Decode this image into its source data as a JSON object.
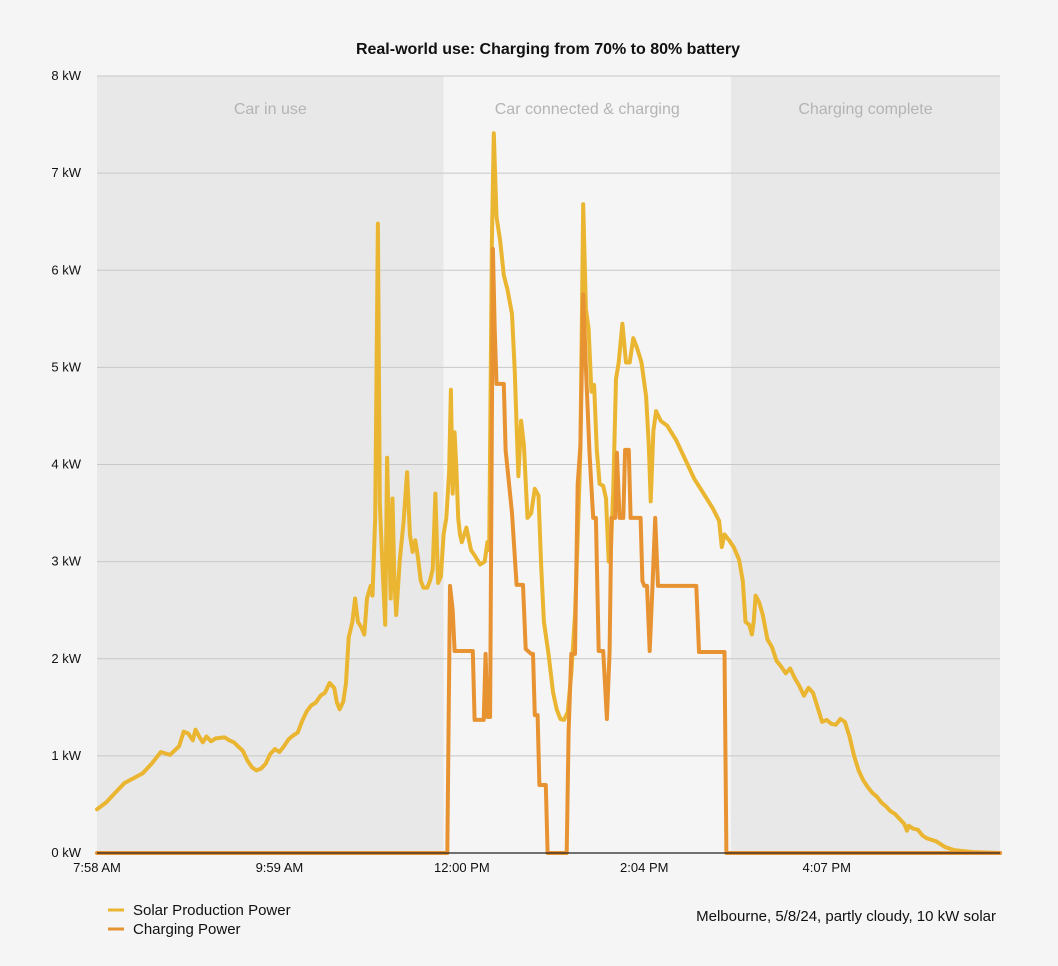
{
  "chart_data": {
    "type": "line",
    "title": "Real-world use: Charging from 70% to 80% battery",
    "xlabel": "",
    "ylabel": "",
    "x_ticks": [
      "7:58 AM",
      "9:59 AM",
      "12:00 PM",
      "2:04 PM",
      "4:07 PM"
    ],
    "x_tick_positions_hours": [
      0,
      2,
      4,
      6,
      8
    ],
    "y_ticks": [
      "0 kW",
      "1 kW",
      "2 kW",
      "3 kW",
      "4 kW",
      "5 kW",
      "6 kW",
      "7 kW",
      "8 kW"
    ],
    "ylim": [
      0,
      8
    ],
    "xlim_hours": [
      0,
      9.9
    ],
    "grid": true,
    "bands": [
      {
        "label": "Car in use",
        "x_start_hours": 0,
        "x_end_hours": 3.8,
        "color": "#e8e8e8"
      },
      {
        "label": "Car connected & charging",
        "x_start_hours": 3.8,
        "x_end_hours": 6.95,
        "color": "#f5f5f5"
      },
      {
        "label": "Charging complete",
        "x_start_hours": 6.95,
        "x_end_hours": 9.9,
        "color": "#e8e8e8"
      }
    ],
    "series": [
      {
        "name": "Solar Production Power",
        "color": "#eab531",
        "points": [
          [
            0,
            0.45
          ],
          [
            0.1,
            0.52
          ],
          [
            0.2,
            0.62
          ],
          [
            0.3,
            0.72
          ],
          [
            0.4,
            0.77
          ],
          [
            0.5,
            0.82
          ],
          [
            0.6,
            0.92
          ],
          [
            0.65,
            0.98
          ],
          [
            0.7,
            1.04
          ],
          [
            0.8,
            1.01
          ],
          [
            0.9,
            1.1
          ],
          [
            0.95,
            1.25
          ],
          [
            1.0,
            1.23
          ],
          [
            1.05,
            1.16
          ],
          [
            1.08,
            1.27
          ],
          [
            1.12,
            1.2
          ],
          [
            1.16,
            1.14
          ],
          [
            1.2,
            1.2
          ],
          [
            1.25,
            1.15
          ],
          [
            1.3,
            1.18
          ],
          [
            1.4,
            1.19
          ],
          [
            1.45,
            1.16
          ],
          [
            1.5,
            1.14
          ],
          [
            1.6,
            1.05
          ],
          [
            1.65,
            0.95
          ],
          [
            1.7,
            0.88
          ],
          [
            1.75,
            0.85
          ],
          [
            1.8,
            0.87
          ],
          [
            1.85,
            0.92
          ],
          [
            1.9,
            1.02
          ],
          [
            1.95,
            1.07
          ],
          [
            2.0,
            1.04
          ],
          [
            2.05,
            1.1
          ],
          [
            2.1,
            1.17
          ],
          [
            2.15,
            1.21
          ],
          [
            2.2,
            1.24
          ],
          [
            2.25,
            1.36
          ],
          [
            2.3,
            1.46
          ],
          [
            2.35,
            1.52
          ],
          [
            2.4,
            1.55
          ],
          [
            2.45,
            1.62
          ],
          [
            2.5,
            1.65
          ],
          [
            2.55,
            1.75
          ],
          [
            2.6,
            1.7
          ],
          [
            2.63,
            1.55
          ],
          [
            2.66,
            1.48
          ],
          [
            2.7,
            1.56
          ],
          [
            2.73,
            1.75
          ],
          [
            2.76,
            2.22
          ],
          [
            2.8,
            2.38
          ],
          [
            2.83,
            2.62
          ],
          [
            2.86,
            2.38
          ],
          [
            2.9,
            2.32
          ],
          [
            2.93,
            2.25
          ],
          [
            2.96,
            2.62
          ],
          [
            3.0,
            2.75
          ],
          [
            3.02,
            2.65
          ],
          [
            3.05,
            3.45
          ],
          [
            3.08,
            6.48
          ],
          [
            3.1,
            3.6
          ],
          [
            3.13,
            2.95
          ],
          [
            3.16,
            2.35
          ],
          [
            3.18,
            4.07
          ],
          [
            3.2,
            3.3
          ],
          [
            3.22,
            2.62
          ],
          [
            3.24,
            3.65
          ],
          [
            3.26,
            2.8
          ],
          [
            3.28,
            2.45
          ],
          [
            3.32,
            3.02
          ],
          [
            3.36,
            3.4
          ],
          [
            3.4,
            3.92
          ],
          [
            3.43,
            3.28
          ],
          [
            3.46,
            3.1
          ],
          [
            3.49,
            3.22
          ],
          [
            3.52,
            3.03
          ],
          [
            3.55,
            2.8
          ],
          [
            3.58,
            2.73
          ],
          [
            3.62,
            2.73
          ],
          [
            3.65,
            2.8
          ],
          [
            3.68,
            2.92
          ],
          [
            3.71,
            3.7
          ],
          [
            3.74,
            2.78
          ],
          [
            3.77,
            2.85
          ],
          [
            3.8,
            3.28
          ],
          [
            3.83,
            3.45
          ],
          [
            3.86,
            3.92
          ],
          [
            3.88,
            4.77
          ],
          [
            3.9,
            3.7
          ],
          [
            3.92,
            4.33
          ],
          [
            3.94,
            3.95
          ],
          [
            3.96,
            3.45
          ],
          [
            3.98,
            3.28
          ],
          [
            4.0,
            3.2
          ],
          [
            4.05,
            3.35
          ],
          [
            4.1,
            3.12
          ],
          [
            4.15,
            3.05
          ],
          [
            4.2,
            2.97
          ],
          [
            4.25,
            3.0
          ],
          [
            4.28,
            3.2
          ],
          [
            4.3,
            3.12
          ],
          [
            4.33,
            6.3
          ],
          [
            4.35,
            7.41
          ],
          [
            4.38,
            6.55
          ],
          [
            4.42,
            6.3
          ],
          [
            4.46,
            5.95
          ],
          [
            4.5,
            5.8
          ],
          [
            4.55,
            5.55
          ],
          [
            4.58,
            4.95
          ],
          [
            4.6,
            4.4
          ],
          [
            4.62,
            3.88
          ],
          [
            4.65,
            4.45
          ],
          [
            4.68,
            4.2
          ],
          [
            4.72,
            3.45
          ],
          [
            4.76,
            3.5
          ],
          [
            4.8,
            3.75
          ],
          [
            4.84,
            3.68
          ],
          [
            4.87,
            2.95
          ],
          [
            4.9,
            2.38
          ],
          [
            4.95,
            2.05
          ],
          [
            5.0,
            1.65
          ],
          [
            5.04,
            1.48
          ],
          [
            5.08,
            1.38
          ],
          [
            5.12,
            1.37
          ],
          [
            5.16,
            1.45
          ],
          [
            5.2,
            1.85
          ],
          [
            5.24,
            2.45
          ],
          [
            5.27,
            3.25
          ],
          [
            5.3,
            4.15
          ],
          [
            5.33,
            6.68
          ],
          [
            5.36,
            5.6
          ],
          [
            5.39,
            5.4
          ],
          [
            5.42,
            4.75
          ],
          [
            5.45,
            4.82
          ],
          [
            5.48,
            4.15
          ],
          [
            5.51,
            3.8
          ],
          [
            5.55,
            3.78
          ],
          [
            5.58,
            3.65
          ],
          [
            5.61,
            3.0
          ],
          [
            5.63,
            3.02
          ],
          [
            5.66,
            3.75
          ],
          [
            5.69,
            4.88
          ],
          [
            5.72,
            5.05
          ],
          [
            5.76,
            5.45
          ],
          [
            5.8,
            5.05
          ],
          [
            5.84,
            5.05
          ],
          [
            5.88,
            5.3
          ],
          [
            5.92,
            5.2
          ],
          [
            5.97,
            5.05
          ],
          [
            6.02,
            4.7
          ],
          [
            6.05,
            4.2
          ],
          [
            6.07,
            3.62
          ],
          [
            6.1,
            4.35
          ],
          [
            6.13,
            4.55
          ],
          [
            6.18,
            4.45
          ],
          [
            6.25,
            4.4
          ],
          [
            6.35,
            4.25
          ],
          [
            6.45,
            4.05
          ],
          [
            6.55,
            3.85
          ],
          [
            6.65,
            3.7
          ],
          [
            6.75,
            3.55
          ],
          [
            6.82,
            3.42
          ],
          [
            6.85,
            3.15
          ],
          [
            6.88,
            3.28
          ],
          [
            6.93,
            3.22
          ],
          [
            6.98,
            3.15
          ],
          [
            7.04,
            3.02
          ],
          [
            7.08,
            2.8
          ],
          [
            7.11,
            2.38
          ],
          [
            7.15,
            2.35
          ],
          [
            7.18,
            2.25
          ],
          [
            7.2,
            2.38
          ],
          [
            7.22,
            2.65
          ],
          [
            7.26,
            2.58
          ],
          [
            7.3,
            2.45
          ],
          [
            7.35,
            2.2
          ],
          [
            7.4,
            2.12
          ],
          [
            7.45,
            1.98
          ],
          [
            7.5,
            1.92
          ],
          [
            7.55,
            1.85
          ],
          [
            7.6,
            1.9
          ],
          [
            7.65,
            1.8
          ],
          [
            7.7,
            1.72
          ],
          [
            7.75,
            1.62
          ],
          [
            7.8,
            1.7
          ],
          [
            7.85,
            1.65
          ],
          [
            7.9,
            1.5
          ],
          [
            7.95,
            1.35
          ],
          [
            8.0,
            1.37
          ],
          [
            8.05,
            1.33
          ],
          [
            8.1,
            1.32
          ],
          [
            8.15,
            1.38
          ],
          [
            8.2,
            1.35
          ],
          [
            8.25,
            1.2
          ],
          [
            8.3,
            1.0
          ],
          [
            8.35,
            0.85
          ],
          [
            8.4,
            0.75
          ],
          [
            8.45,
            0.68
          ],
          [
            8.5,
            0.62
          ],
          [
            8.55,
            0.58
          ],
          [
            8.6,
            0.52
          ],
          [
            8.65,
            0.48
          ],
          [
            8.7,
            0.43
          ],
          [
            8.75,
            0.4
          ],
          [
            8.8,
            0.35
          ],
          [
            8.85,
            0.3
          ],
          [
            8.88,
            0.23
          ],
          [
            8.9,
            0.28
          ],
          [
            8.95,
            0.25
          ],
          [
            9.0,
            0.24
          ],
          [
            9.05,
            0.18
          ],
          [
            9.1,
            0.15
          ],
          [
            9.2,
            0.12
          ],
          [
            9.3,
            0.06
          ],
          [
            9.4,
            0.03
          ],
          [
            9.5,
            0.02
          ],
          [
            9.6,
            0.01
          ],
          [
            9.9,
            0.0
          ]
        ]
      },
      {
        "name": "Charging Power",
        "color": "#e89332",
        "points": [
          [
            0,
            0
          ],
          [
            3.82,
            0
          ],
          [
            3.84,
            0
          ],
          [
            3.87,
            2.75
          ],
          [
            3.9,
            2.5
          ],
          [
            3.92,
            2.08
          ],
          [
            4.05,
            2.08
          ],
          [
            4.12,
            2.08
          ],
          [
            4.14,
            1.37
          ],
          [
            4.24,
            1.37
          ],
          [
            4.26,
            2.05
          ],
          [
            4.28,
            1.4
          ],
          [
            4.31,
            1.4
          ],
          [
            4.34,
            6.22
          ],
          [
            4.36,
            5.4
          ],
          [
            4.38,
            4.83
          ],
          [
            4.46,
            4.83
          ],
          [
            4.48,
            4.15
          ],
          [
            4.55,
            3.5
          ],
          [
            4.6,
            2.76
          ],
          [
            4.67,
            2.76
          ],
          [
            4.7,
            2.1
          ],
          [
            4.76,
            2.05
          ],
          [
            4.78,
            2.05
          ],
          [
            4.8,
            1.42
          ],
          [
            4.83,
            1.42
          ],
          [
            4.85,
            0.7
          ],
          [
            4.92,
            0.7
          ],
          [
            4.94,
            0
          ],
          [
            5.15,
            0
          ],
          [
            5.17,
            1.25
          ],
          [
            5.2,
            2.05
          ],
          [
            5.24,
            2.05
          ],
          [
            5.27,
            3.8
          ],
          [
            5.3,
            4.2
          ],
          [
            5.33,
            5.75
          ],
          [
            5.36,
            5.0
          ],
          [
            5.4,
            4.12
          ],
          [
            5.44,
            3.45
          ],
          [
            5.47,
            3.45
          ],
          [
            5.5,
            2.08
          ],
          [
            5.55,
            2.08
          ],
          [
            5.59,
            1.38
          ],
          [
            5.62,
            2.08
          ],
          [
            5.64,
            3.45
          ],
          [
            5.68,
            3.45
          ],
          [
            5.7,
            4.12
          ],
          [
            5.73,
            3.45
          ],
          [
            5.77,
            3.45
          ],
          [
            5.79,
            4.15
          ],
          [
            5.83,
            4.15
          ],
          [
            5.85,
            3.45
          ],
          [
            5.88,
            3.45
          ],
          [
            5.92,
            3.45
          ],
          [
            5.96,
            3.45
          ],
          [
            5.98,
            2.8
          ],
          [
            6.0,
            2.75
          ],
          [
            6.03,
            2.75
          ],
          [
            6.06,
            2.08
          ],
          [
            6.09,
            2.75
          ],
          [
            6.12,
            3.45
          ],
          [
            6.15,
            2.75
          ],
          [
            6.57,
            2.75
          ],
          [
            6.6,
            2.07
          ],
          [
            6.88,
            2.07
          ],
          [
            6.9,
            0
          ],
          [
            9.9,
            0
          ]
        ]
      }
    ],
    "legend": {
      "placement": "bottom-left",
      "entries": [
        "Solar Production Power",
        "Charging Power"
      ]
    },
    "annotation": "Melbourne, 5/8/24, partly cloudy, 10 kW solar"
  }
}
